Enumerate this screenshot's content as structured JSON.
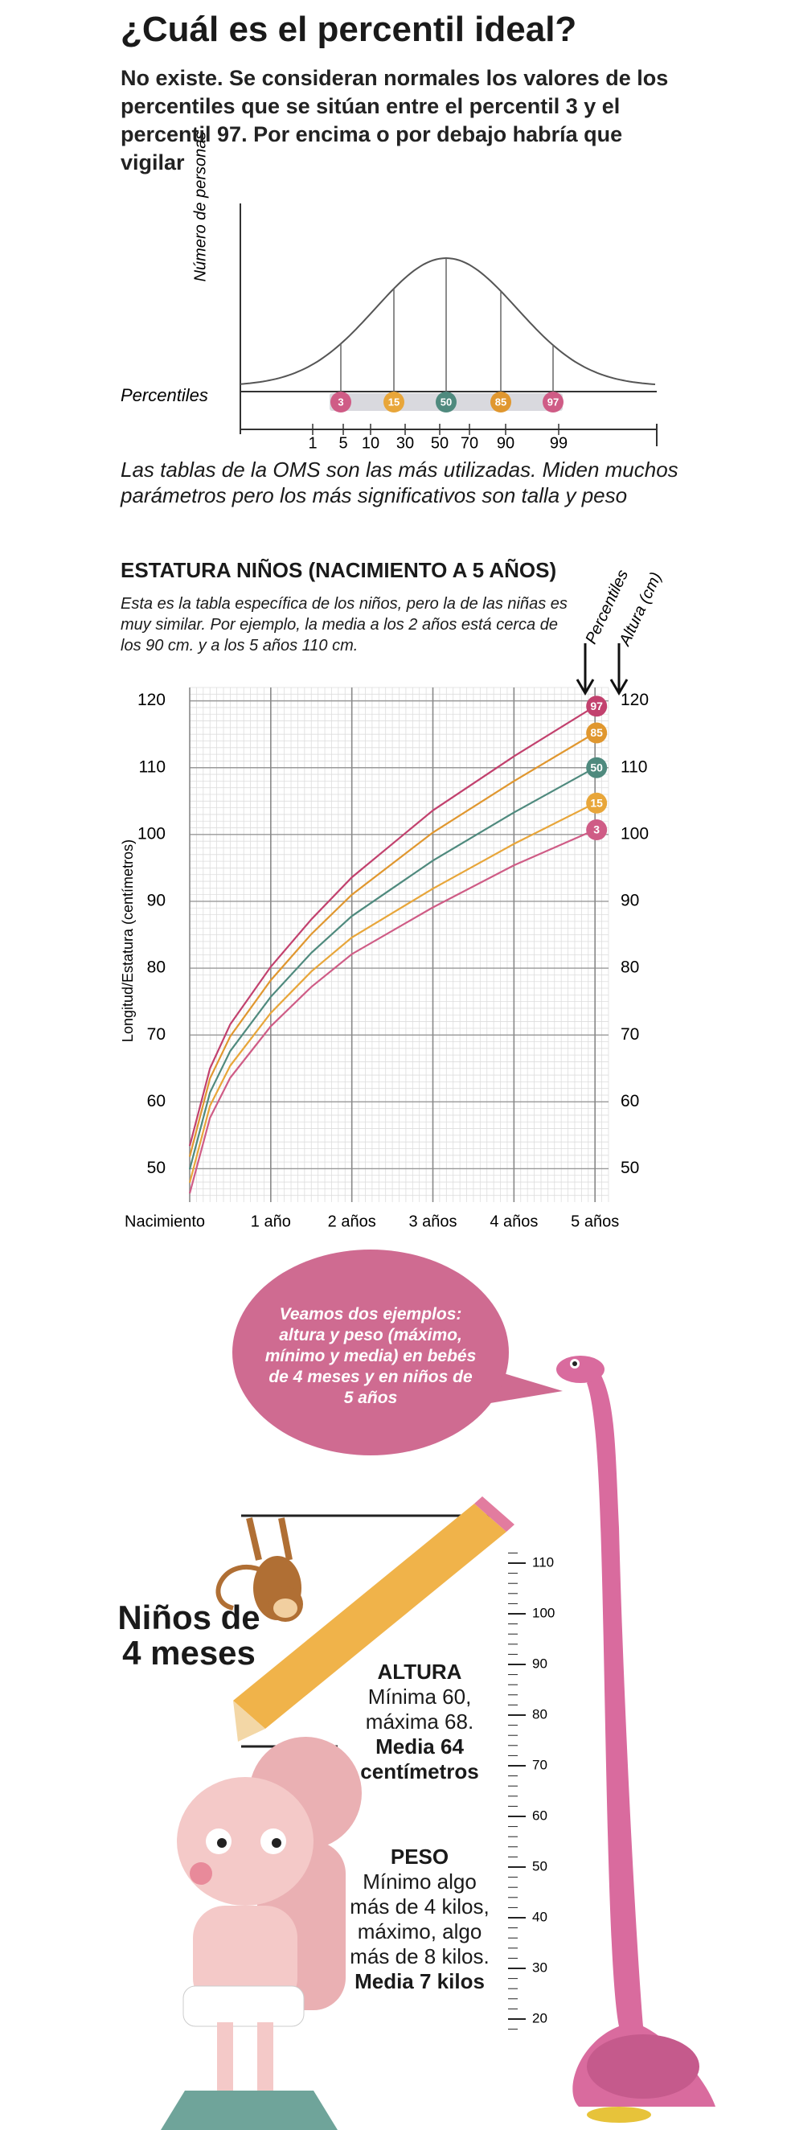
{
  "header": {
    "title": "¿Cuál es el percentil ideal?",
    "subtitle": "No existe. Se consideran normales los valores de los percentiles que se sitúan entre el percentil 3 y el percentil 97. Por encima o por debajo habría que vigilar"
  },
  "bell": {
    "y_label": "Número de personas",
    "row_label": "Percentiles",
    "markers": [
      "3",
      "15",
      "50",
      "85",
      "97"
    ],
    "axis_labels": [
      1,
      5,
      10,
      30,
      50,
      70,
      90,
      99
    ]
  },
  "caption": "Las tablas de la OMS son las más utilizadas. Miden muchos parámetros pero los más significativos son talla y peso",
  "chart_data": {
    "type": "line",
    "title": "ESTATURA NIÑOS (NACIMIENTO A 5 AÑOS)",
    "subtitle": "Esta es la tabla específica de los niños, pero la de las niñas es muy similar. Por ejemplo, la media a los 2 años está cerca de los 90 cm. y a los 5 años 110 cm.",
    "y_label": "Longitud/Estatura (centímetros)",
    "annotations": [
      "Percentiles",
      "Altura (cm)"
    ],
    "x": [
      0,
      3,
      6,
      12,
      18,
      24,
      36,
      48,
      60
    ],
    "xlim": [
      0,
      62
    ],
    "xticks": [
      {
        "value": 0,
        "label": "Nacimiento"
      },
      {
        "value": 12,
        "label": "1 año"
      },
      {
        "value": 24,
        "label": "2 años"
      },
      {
        "value": 36,
        "label": "3 años"
      },
      {
        "value": 48,
        "label": "4 años"
      },
      {
        "value": 60,
        "label": "5 años"
      }
    ],
    "ylim": [
      45,
      122
    ],
    "yticks": [
      50,
      60,
      70,
      80,
      90,
      100,
      110,
      120
    ],
    "grid": true,
    "series": [
      {
        "name": "97",
        "color": "#c2416e",
        "values": [
          53.4,
          65.0,
          71.6,
          80.2,
          87.3,
          93.6,
          103.6,
          111.7,
          119.2
        ]
      },
      {
        "name": "85",
        "color": "#e0972f",
        "values": [
          51.8,
          63.5,
          69.8,
          78.2,
          85.1,
          91.0,
          100.3,
          108.0,
          115.2
        ]
      },
      {
        "name": "50",
        "color": "#4f8a7e",
        "values": [
          49.9,
          61.4,
          67.6,
          75.7,
          82.3,
          87.8,
          96.1,
          103.3,
          110.0
        ]
      },
      {
        "name": "15",
        "color": "#e8a63a",
        "values": [
          47.9,
          59.4,
          65.4,
          73.3,
          79.5,
          84.6,
          91.9,
          98.6,
          104.7
        ]
      },
      {
        "name": "3",
        "color": "#cf5c86",
        "values": [
          46.3,
          57.6,
          63.6,
          71.3,
          77.2,
          82.1,
          89.1,
          95.4,
          100.7
        ]
      }
    ]
  },
  "bubble": "Veamos dos ejemplos: altura y peso (máximo, mínimo y media) en bebés de 4 meses y en niños de 5 años",
  "example": {
    "title": "Niños de 4 meses",
    "altura": {
      "heading": "ALTURA",
      "text": "Mínima 60, máxima 68.",
      "bold": "Media 64 centímetros"
    },
    "peso": {
      "heading": "PESO",
      "text": "Mínimo algo más de 4 kilos, máximo, algo más de 8 kilos.",
      "bold": "Media 7 kilos"
    }
  },
  "ruler": [
    110,
    100,
    90,
    80,
    70,
    60,
    50,
    40,
    30,
    20
  ]
}
